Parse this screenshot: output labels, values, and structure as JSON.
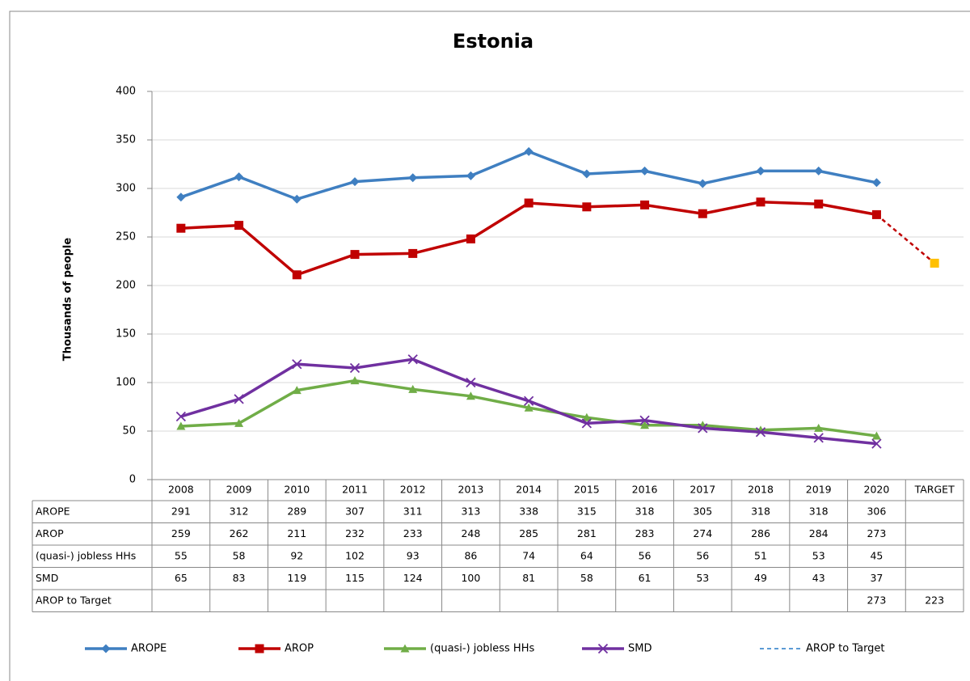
{
  "chart_data": {
    "type": "line",
    "title": "Estonia",
    "y_label": "Thousands of people",
    "categories": [
      "2008",
      "2009",
      "2010",
      "2011",
      "2012",
      "2013",
      "2014",
      "2015",
      "2016",
      "2017",
      "2018",
      "2019",
      "2020",
      "TARGET"
    ],
    "ylim": [
      0,
      400
    ],
    "yticks": [
      0,
      50,
      100,
      150,
      200,
      250,
      300,
      350,
      400
    ],
    "grid": true,
    "legend": "bottom",
    "data_table": true,
    "series": [
      {
        "name": "AROPE",
        "color": "#3f7fc1",
        "marker": "diamond",
        "values": [
          291,
          312,
          289,
          307,
          311,
          313,
          338,
          315,
          318,
          305,
          318,
          318,
          306,
          null
        ]
      },
      {
        "name": "AROP",
        "color": "#c00000",
        "marker": "square",
        "values": [
          259,
          262,
          211,
          232,
          233,
          248,
          285,
          281,
          283,
          274,
          286,
          284,
          273,
          null
        ]
      },
      {
        "name": "(quasi-) jobless HHs",
        "color": "#70ad47",
        "marker": "triangle",
        "values": [
          55,
          58,
          92,
          102,
          93,
          86,
          74,
          64,
          56,
          56,
          51,
          53,
          45,
          null
        ]
      },
      {
        "name": "SMD",
        "color": "#7030a0",
        "marker": "x",
        "values": [
          65,
          83,
          119,
          115,
          124,
          100,
          81,
          58,
          61,
          53,
          49,
          43,
          37,
          null
        ]
      },
      {
        "name": "AROP to Target",
        "color": "#c00000",
        "dashed": true,
        "marker": "square",
        "marker_color": "#ffc000",
        "marker_only_last": true,
        "legend_color": "#5b9bd5",
        "values": [
          null,
          null,
          null,
          null,
          null,
          null,
          null,
          null,
          null,
          null,
          null,
          null,
          273,
          223
        ]
      }
    ]
  }
}
